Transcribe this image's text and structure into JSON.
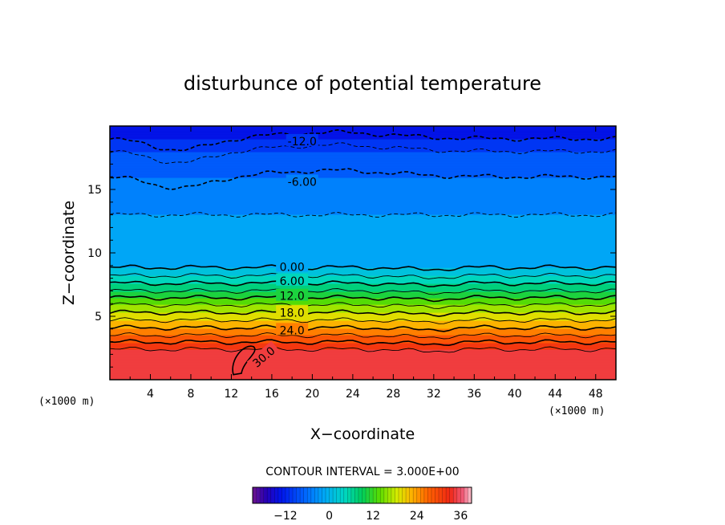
{
  "chart_data": {
    "type": "heatmap",
    "title": "disturbunce of potential temperature",
    "xlabel": "X−coordinate",
    "ylabel": "Z−coordinate",
    "x_unit": "(×1000 m)",
    "y_unit": "(×1000 m)",
    "xlim": [
      0,
      50
    ],
    "ylim": [
      0,
      20
    ],
    "x_ticks": [
      4,
      8,
      12,
      16,
      20,
      24,
      28,
      32,
      36,
      40,
      44,
      48
    ],
    "y_ticks": [
      5,
      10,
      15
    ],
    "contour_interval_text": "CONTOUR INTERVAL = 3.000E+00",
    "colorbar": {
      "min": -21,
      "max": 39,
      "step": 3,
      "ticks": [
        -12,
        0,
        12,
        24,
        36
      ]
    },
    "profile": {
      "z": [
        0,
        2.2,
        2.8,
        3.3,
        3.9,
        4.5,
        5.1,
        5.7,
        6.3,
        6.8,
        7.4,
        8.0,
        8.6,
        9.1,
        13.0,
        16.0,
        18.0,
        19.0,
        20.0
      ],
      "theta": [
        36,
        34,
        31,
        28,
        25,
        22,
        19,
        16,
        13,
        10,
        7,
        4,
        1,
        -1,
        -3,
        -6,
        -9,
        -12,
        -14
      ]
    },
    "contour_labels": [
      {
        "text": "-12.0",
        "x": 19.0,
        "z": 18.8
      },
      {
        "text": "-6.00",
        "x": 19.0,
        "z": 15.6
      },
      {
        "text": "0.00",
        "x": 18.0,
        "z": 8.9
      },
      {
        "text": "6.00",
        "x": 18.0,
        "z": 7.8
      },
      {
        "text": "12.0",
        "x": 18.0,
        "z": 6.6
      },
      {
        "text": "18.0",
        "x": 18.0,
        "z": 5.3
      },
      {
        "text": "24.0",
        "x": 18.0,
        "z": 3.9
      },
      {
        "text": "30.0",
        "x": 15.2,
        "z": 1.8
      }
    ],
    "grid": false,
    "legend": "none"
  }
}
